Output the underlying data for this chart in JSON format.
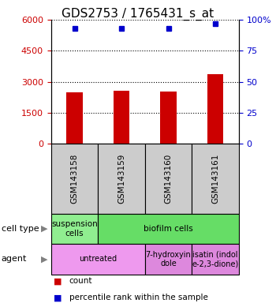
{
  "title": "GDS2753 / 1765431_s_at",
  "samples": [
    "GSM143158",
    "GSM143159",
    "GSM143160",
    "GSM143161"
  ],
  "counts": [
    2500,
    2560,
    2540,
    3350
  ],
  "percentile_ranks": [
    93,
    93,
    93,
    97
  ],
  "ylim_left": [
    0,
    6000
  ],
  "ylim_right": [
    0,
    100
  ],
  "yticks_left": [
    0,
    1500,
    3000,
    4500,
    6000
  ],
  "yticks_right": [
    0,
    25,
    50,
    75,
    100
  ],
  "ytick_labels_left": [
    "0",
    "1500",
    "3000",
    "4500",
    "6000"
  ],
  "ytick_labels_right": [
    "0",
    "25",
    "50",
    "75",
    "100%"
  ],
  "bar_color": "#cc0000",
  "dot_color": "#0000cc",
  "cell_type_row": {
    "label": "cell type",
    "cells": [
      {
        "text": "suspension\ncells",
        "color": "#90ee90",
        "colspan": 1
      },
      {
        "text": "biofilm cells",
        "color": "#66dd66",
        "colspan": 3
      }
    ]
  },
  "agent_row": {
    "label": "agent",
    "cells": [
      {
        "text": "untreated",
        "color": "#ee99ee",
        "colspan": 2
      },
      {
        "text": "7-hydroxyin\ndole",
        "color": "#dd88dd",
        "colspan": 1
      },
      {
        "text": "isatin (indol\ne-2,3-dione)",
        "color": "#dd88dd",
        "colspan": 1
      }
    ]
  },
  "legend_count_color": "#cc0000",
  "legend_pct_color": "#0000cc",
  "sample_box_color": "#cccccc",
  "title_fontsize": 11,
  "axis_label_color_left": "#cc0000",
  "axis_label_color_right": "#0000cc"
}
